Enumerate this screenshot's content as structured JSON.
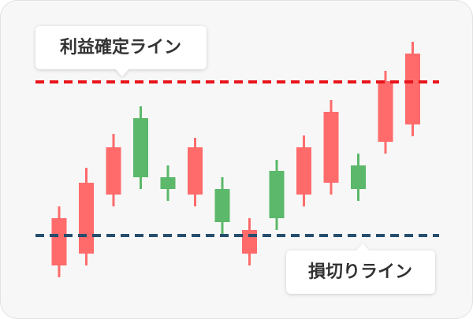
{
  "chart_data": {
    "type": "candlestick",
    "candles": [
      {
        "open": 68,
        "high": 143,
        "low": 53,
        "close": 128
      },
      {
        "open": 83,
        "high": 192,
        "low": 68,
        "close": 173
      },
      {
        "open": 158,
        "high": 235,
        "low": 143,
        "close": 218
      },
      {
        "open": 255,
        "high": 270,
        "low": 165,
        "close": 180
      },
      {
        "open": 180,
        "high": 195,
        "low": 150,
        "close": 165
      },
      {
        "open": 158,
        "high": 230,
        "low": 143,
        "close": 218
      },
      {
        "open": 165,
        "high": 180,
        "low": 108,
        "close": 123
      },
      {
        "open": 83,
        "high": 128,
        "low": 68,
        "close": 113
      },
      {
        "open": 188,
        "high": 202,
        "low": 113,
        "close": 128
      },
      {
        "open": 158,
        "high": 233,
        "low": 143,
        "close": 218
      },
      {
        "open": 173,
        "high": 278,
        "low": 158,
        "close": 263
      },
      {
        "open": 195,
        "high": 210,
        "low": 150,
        "close": 165
      },
      {
        "open": 225,
        "high": 315,
        "low": 210,
        "close": 302
      },
      {
        "open": 247,
        "high": 352,
        "low": 232,
        "close": 337
      }
    ],
    "up_color": "#ff6b6b",
    "down_color": "#5cb86a",
    "ylim": [
      0,
      405
    ],
    "take_profit": {
      "label": "利益確定ライン",
      "value": 301,
      "color": "#e8141b"
    },
    "stop_loss": {
      "label": "損切りライン",
      "value": 106,
      "color": "#264e6e"
    }
  }
}
